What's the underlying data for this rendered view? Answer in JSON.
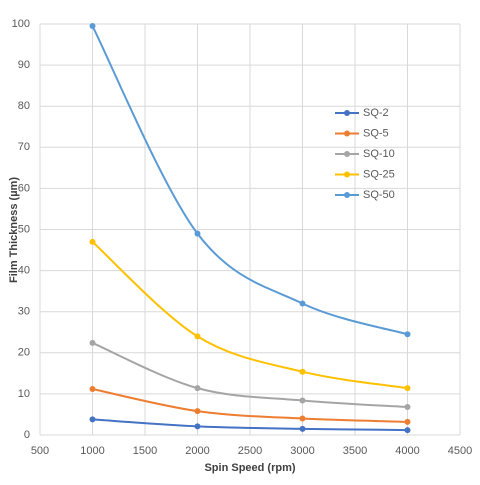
{
  "chart_data": {
    "type": "line",
    "x_label": "Spin Speed (rpm)",
    "y_label": "Film Thickness (µm)",
    "x": [
      1000,
      2000,
      3000,
      4000
    ],
    "series": [
      {
        "name": "SQ-2",
        "color": "#4472c4",
        "values": [
          3.8,
          2.1,
          1.5,
          1.2
        ]
      },
      {
        "name": "SQ-5",
        "color": "#ed7d31",
        "values": [
          11.2,
          5.8,
          4.0,
          3.2
        ]
      },
      {
        "name": "SQ-10",
        "color": "#a5a5a5",
        "values": [
          22.4,
          11.4,
          8.4,
          6.8
        ]
      },
      {
        "name": "SQ-25",
        "color": "#ffc000",
        "values": [
          47,
          24,
          15.4,
          11.4
        ]
      },
      {
        "name": "SQ-50",
        "color": "#5b9bd5",
        "values": [
          99.5,
          49,
          32,
          24.5
        ]
      }
    ],
    "xlim": [
      500,
      4500
    ],
    "xticks": [
      500,
      1000,
      1500,
      2000,
      2500,
      3000,
      3500,
      4000,
      4500
    ],
    "ylim": [
      0,
      100
    ],
    "yticks": [
      0,
      10,
      20,
      30,
      40,
      50,
      60,
      70,
      80,
      90,
      100
    ],
    "grid": true,
    "smooth": true,
    "legend": "right"
  }
}
